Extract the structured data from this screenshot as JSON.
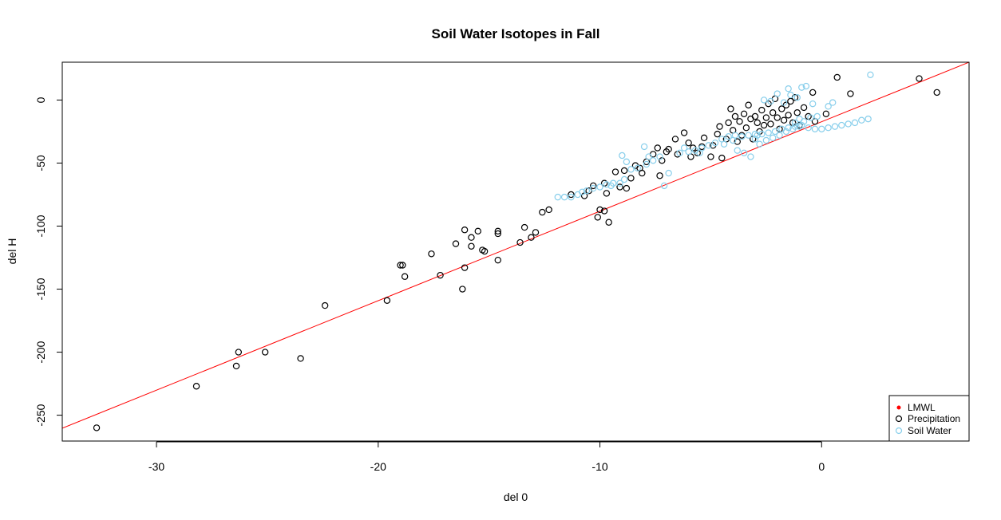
{
  "chart_data": {
    "type": "scatter",
    "title": "Soil Water Isotopes in Fall",
    "xlabel": "del 0",
    "ylabel": "del H",
    "xlim": [
      -34.25,
      6.65
    ],
    "ylim": [
      -270.5,
      30
    ],
    "x_ticks": [
      -30,
      -20,
      -10,
      0
    ],
    "y_ticks": [
      0,
      -50,
      -100,
      -150,
      -200,
      -250
    ],
    "grid": false,
    "legend_position": "bottom-right",
    "legend": [
      {
        "label": "LMWL",
        "color": "#ff0000",
        "marker": "dot"
      },
      {
        "label": "Precipitation",
        "color": "#000000",
        "marker": "circle"
      },
      {
        "label": "Soil Water",
        "color": "#87ceeb",
        "marker": "circle"
      }
    ],
    "lmwl": {
      "color": "#ff0000",
      "points": [
        [
          -34.25,
          -260.3
        ],
        [
          6.65,
          30
        ]
      ]
    },
    "series": [
      {
        "name": "Precipitation",
        "color": "#000000",
        "points": [
          [
            -32.7,
            -260
          ],
          [
            -28.2,
            -227
          ],
          [
            -26.3,
            -200
          ],
          [
            -26.4,
            -211
          ],
          [
            -25.1,
            -200
          ],
          [
            -23.5,
            -205
          ],
          [
            -22.4,
            -163
          ],
          [
            -19.6,
            -159
          ],
          [
            -19.0,
            -131
          ],
          [
            -18.9,
            -131
          ],
          [
            -18.8,
            -140
          ],
          [
            -17.6,
            -122
          ],
          [
            -17.2,
            -139
          ],
          [
            -16.5,
            -114
          ],
          [
            -16.2,
            -150
          ],
          [
            -16.1,
            -103
          ],
          [
            -16.1,
            -133
          ],
          [
            -15.8,
            -109
          ],
          [
            -15.8,
            -116
          ],
          [
            -15.5,
            -104
          ],
          [
            -15.3,
            -119
          ],
          [
            -15.2,
            -120
          ],
          [
            -14.6,
            -104
          ],
          [
            -14.6,
            -106
          ],
          [
            -14.6,
            -127
          ],
          [
            -13.6,
            -113
          ],
          [
            -13.4,
            -101
          ],
          [
            -13.1,
            -109
          ],
          [
            -12.9,
            -105
          ],
          [
            -12.6,
            -89
          ],
          [
            -12.3,
            -87
          ],
          [
            -11.3,
            -75
          ],
          [
            -10.7,
            -76
          ],
          [
            -10.5,
            -72
          ],
          [
            -10.3,
            -68
          ],
          [
            -10.1,
            -93
          ],
          [
            -10.0,
            -87
          ],
          [
            -9.8,
            -88
          ],
          [
            -9.8,
            -66
          ],
          [
            -9.7,
            -74
          ],
          [
            -9.6,
            -97
          ],
          [
            -9.3,
            -57
          ],
          [
            -9.1,
            -69
          ],
          [
            -8.9,
            -56
          ],
          [
            -8.8,
            -70
          ],
          [
            -8.6,
            -62
          ],
          [
            -8.4,
            -52
          ],
          [
            -8.2,
            -54
          ],
          [
            -8.1,
            -58
          ],
          [
            -7.9,
            -49
          ],
          [
            -7.6,
            -43
          ],
          [
            -7.4,
            -38
          ],
          [
            -7.3,
            -60
          ],
          [
            -7.2,
            -48
          ],
          [
            -7.0,
            -41
          ],
          [
            -6.9,
            -39
          ],
          [
            -6.6,
            -31
          ],
          [
            -6.5,
            -43
          ],
          [
            -6.2,
            -26
          ],
          [
            -6.0,
            -34
          ],
          [
            -5.9,
            -45
          ],
          [
            -5.8,
            -38
          ],
          [
            -5.6,
            -42
          ],
          [
            -5.4,
            -37
          ],
          [
            -5.3,
            -30
          ],
          [
            -5.0,
            -45
          ],
          [
            -4.9,
            -36
          ],
          [
            -4.7,
            -27
          ],
          [
            -4.6,
            -21
          ],
          [
            -4.5,
            -46
          ],
          [
            -4.3,
            -31
          ],
          [
            -4.2,
            -18
          ],
          [
            -4.1,
            -7
          ],
          [
            -4.0,
            -24
          ],
          [
            -3.9,
            -13
          ],
          [
            -3.8,
            -33
          ],
          [
            -3.7,
            -17
          ],
          [
            -3.6,
            -28
          ],
          [
            -3.5,
            -11
          ],
          [
            -3.4,
            -22
          ],
          [
            -3.3,
            -4
          ],
          [
            -3.2,
            -15
          ],
          [
            -3.1,
            -31
          ],
          [
            -3.0,
            -13
          ],
          [
            -2.9,
            -18
          ],
          [
            -2.8,
            -25
          ],
          [
            -2.7,
            -8
          ],
          [
            -2.6,
            -20
          ],
          [
            -2.5,
            -14
          ],
          [
            -2.4,
            -3
          ],
          [
            -2.3,
            -19
          ],
          [
            -2.2,
            -10
          ],
          [
            -2.1,
            1
          ],
          [
            -2.0,
            -14
          ],
          [
            -1.9,
            -23
          ],
          [
            -1.8,
            -7
          ],
          [
            -1.7,
            -16
          ],
          [
            -1.6,
            -4
          ],
          [
            -1.5,
            -12
          ],
          [
            -1.4,
            -1
          ],
          [
            -1.3,
            -18
          ],
          [
            -1.2,
            2
          ],
          [
            -1.1,
            -10
          ],
          [
            -1.0,
            -20
          ],
          [
            -0.8,
            -6
          ],
          [
            -0.6,
            -13
          ],
          [
            -0.4,
            6
          ],
          [
            -0.3,
            -17
          ],
          [
            0.2,
            -11
          ],
          [
            0.7,
            18
          ],
          [
            1.3,
            5
          ],
          [
            4.4,
            17
          ],
          [
            5.2,
            6
          ]
        ]
      },
      {
        "name": "Soil Water",
        "color": "#87ceeb",
        "points": [
          [
            -11.9,
            -77
          ],
          [
            -11.6,
            -77
          ],
          [
            -11.3,
            -77
          ],
          [
            -11.0,
            -75
          ],
          [
            -10.8,
            -73
          ],
          [
            -10.6,
            -72
          ],
          [
            -10.3,
            -70
          ],
          [
            -10.0,
            -69
          ],
          [
            -9.7,
            -67
          ],
          [
            -9.4,
            -66
          ],
          [
            -9.1,
            -66
          ],
          [
            -9.5,
            -68
          ],
          [
            -8.9,
            -63
          ],
          [
            -8.6,
            -55
          ],
          [
            -8.3,
            -54
          ],
          [
            -7.9,
            -51
          ],
          [
            -7.6,
            -48
          ],
          [
            -7.3,
            -45
          ],
          [
            -7.1,
            -68
          ],
          [
            -6.9,
            -58
          ],
          [
            -6.4,
            -42
          ],
          [
            -6.0,
            -41
          ],
          [
            -5.7,
            -40
          ],
          [
            -5.4,
            -38
          ],
          [
            -5.1,
            -36
          ],
          [
            -4.8,
            -34
          ],
          [
            -4.5,
            -31
          ],
          [
            -4.2,
            -29
          ],
          [
            -3.9,
            -28
          ],
          [
            -3.6,
            -29
          ],
          [
            -3.3,
            -28
          ],
          [
            -3.0,
            -27
          ],
          [
            -2.7,
            -27
          ],
          [
            -2.4,
            -26
          ],
          [
            -2.1,
            -25
          ],
          [
            -1.8,
            -23
          ],
          [
            -1.5,
            -22
          ],
          [
            -1.2,
            -21
          ],
          [
            -0.9,
            -20
          ],
          [
            -0.6,
            -22
          ],
          [
            -0.3,
            -23
          ],
          [
            0.0,
            -23
          ],
          [
            0.3,
            -22
          ],
          [
            0.6,
            -21
          ],
          [
            0.9,
            -20
          ],
          [
            1.2,
            -19
          ],
          [
            1.5,
            -18
          ],
          [
            1.8,
            -16
          ],
          [
            2.1,
            -15
          ],
          [
            2.2,
            20
          ],
          [
            -8.0,
            -37
          ],
          [
            -7.8,
            -45
          ],
          [
            -9.0,
            -44
          ],
          [
            -8.8,
            -49
          ],
          [
            -6.2,
            -38
          ],
          [
            -5.5,
            -42
          ],
          [
            -3.8,
            -40
          ],
          [
            -3.5,
            -42
          ],
          [
            -3.2,
            -45
          ],
          [
            -2.8,
            -35
          ],
          [
            -2.5,
            -32
          ],
          [
            -2.2,
            -30
          ],
          [
            -1.9,
            -28
          ],
          [
            -1.6,
            -25
          ],
          [
            -1.3,
            -23
          ],
          [
            -1.0,
            -15
          ],
          [
            -0.8,
            -17
          ],
          [
            -0.5,
            -14
          ],
          [
            -0.2,
            -13
          ],
          [
            -0.9,
            10
          ],
          [
            -1.1,
            2
          ],
          [
            -1.4,
            4
          ],
          [
            -1.7,
            -2
          ],
          [
            -2.0,
            5
          ],
          [
            -2.3,
            -1
          ],
          [
            -2.6,
            0
          ],
          [
            -1.5,
            9
          ],
          [
            -0.7,
            11
          ],
          [
            0.3,
            -5
          ],
          [
            0.5,
            -2
          ],
          [
            -4.4,
            -35
          ],
          [
            -4.0,
            -32
          ],
          [
            -3.0,
            -31
          ],
          [
            -2.9,
            -28
          ],
          [
            -1.2,
            -18
          ],
          [
            -1.0,
            -21
          ],
          [
            -0.4,
            -3
          ]
        ]
      }
    ]
  }
}
